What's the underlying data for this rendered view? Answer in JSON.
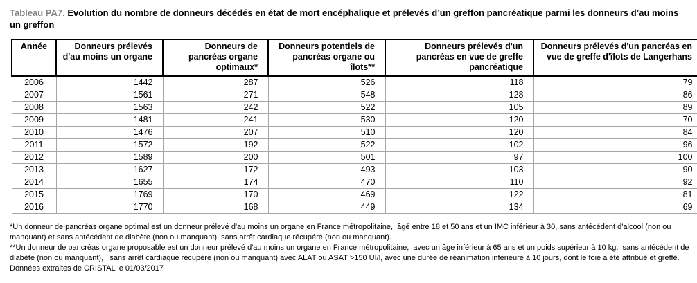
{
  "title": {
    "label": "Tableau PA7.",
    "text": "Evolution du nombre de donneurs décédés en état de mort encéphalique et prélevés d’un greffon pancréatique parmi les donneurs d’au moins un greffon"
  },
  "table": {
    "columns": [
      "Année",
      "Donneurs prélevés d'au moins un organe",
      "Donneurs de pancréas organe optimaux*",
      "Donneurs potentiels de pancréas organe ou îlots**",
      "Donneurs prélevés d'un pancréas en vue de greffe pancréatique",
      "Donneurs prélevés d'un pancréas en vue de greffe d'îlots de Langerhans"
    ],
    "rows": [
      [
        "2006",
        "1442",
        "287",
        "526",
        "118",
        "79"
      ],
      [
        "2007",
        "1561",
        "271",
        "548",
        "128",
        "86"
      ],
      [
        "2008",
        "1563",
        "242",
        "522",
        "105",
        "89"
      ],
      [
        "2009",
        "1481",
        "241",
        "530",
        "120",
        "70"
      ],
      [
        "2010",
        "1476",
        "207",
        "510",
        "120",
        "84"
      ],
      [
        "2011",
        "1572",
        "192",
        "522",
        "102",
        "96"
      ],
      [
        "2012",
        "1589",
        "200",
        "501",
        "97",
        "100"
      ],
      [
        "2013",
        "1627",
        "172",
        "493",
        "103",
        "90"
      ],
      [
        "2014",
        "1655",
        "174",
        "470",
        "110",
        "92"
      ],
      [
        "2015",
        "1769",
        "170",
        "469",
        "122",
        "81"
      ],
      [
        "2016",
        "1770",
        "168",
        "449",
        "134",
        "69"
      ]
    ]
  },
  "footnotes": [
    "*Un donneur de pancréas organe optimal est un donneur prélevé d'au moins un organe en France métropolitaine,  âgé entre 18 et 50 ans et un IMC inférieur à 30, sans antécédent d'alcool (non ou manquant) et sans antécédent de diabète (non ou manquant), sans arrêt cardiaque récupéré (non ou manquant).",
    "**Un donneur de pancréas organe proposable est un donneur prélevé d'au moins un organe en France métropolitaine,  avec un âge inférieur à 65 ans et un poids supérieur à 10 kg,  sans antécédent de diabète (non ou manquant),   sans arrêt cardiaque récupéré (non ou manquant) avec ALAT ou ASAT >150 UI/l, avec une durée de réanimation inférieure à 10 jours, dont le foie a été attribué et greffé."
  ],
  "source": "Données extraites de CRISTAL le 01/03/2017",
  "colors": {
    "title_label": "#7f7f7f",
    "title_text": "#000000",
    "header_border": "#000000",
    "body_border": "#a6a6a6",
    "background": "#ffffff"
  }
}
